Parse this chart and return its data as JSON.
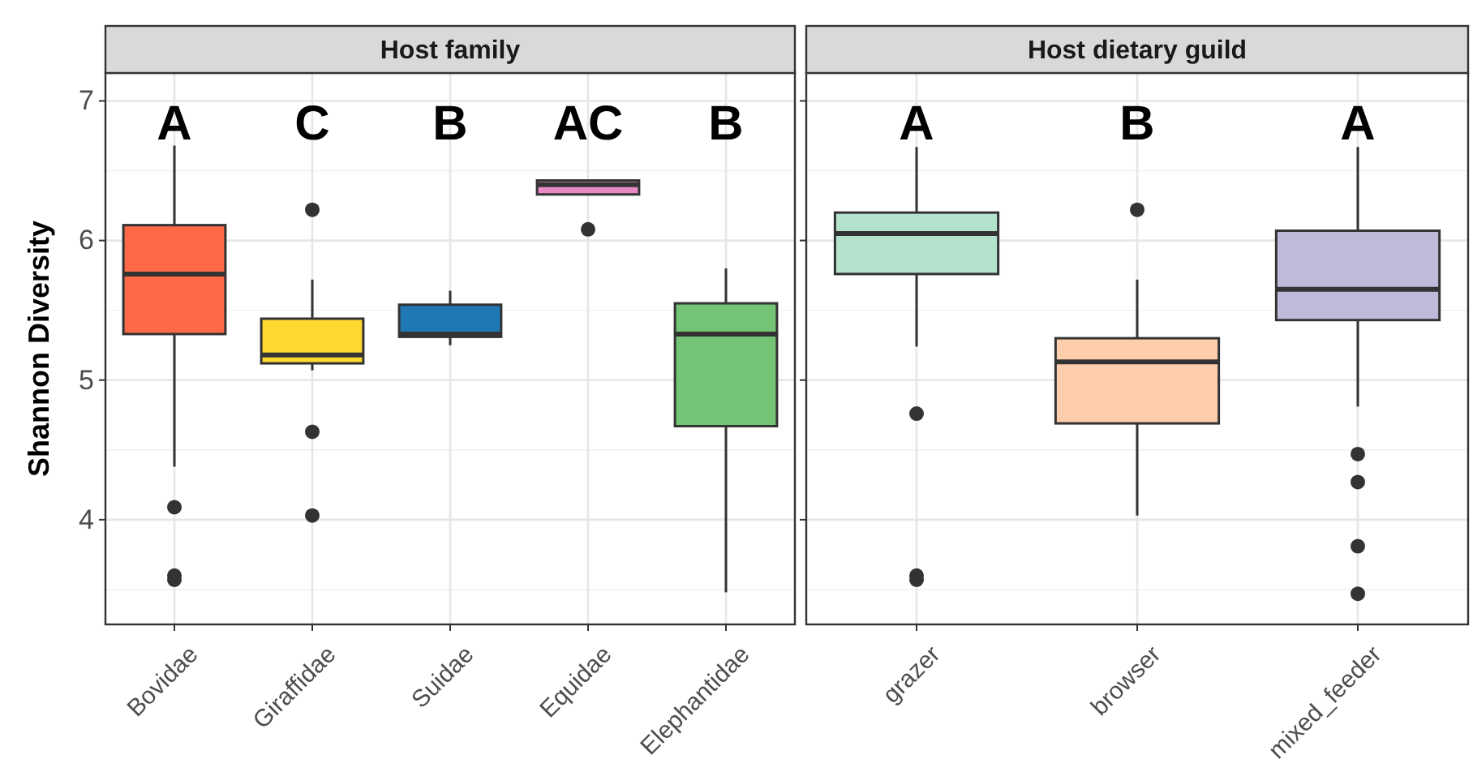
{
  "chart_data": [
    {
      "type": "box",
      "title": "Host family",
      "ylabel": "Shannon Diversity",
      "categories": [
        "Bovidae",
        "Giraffidae",
        "Suidae",
        "Equidae",
        "Elephantidae"
      ],
      "colors": [
        "#fe6a48",
        "#ffd92f",
        "#1f78b4",
        "#e78ac3",
        "#74c476"
      ],
      "boxes": [
        {
          "low": 4.38,
          "q1": 5.33,
          "median": 5.76,
          "q3": 6.11,
          "high": 6.68,
          "outliers": [
            4.09,
            3.6,
            3.57
          ]
        },
        {
          "low": 5.07,
          "q1": 5.12,
          "median": 5.18,
          "q3": 5.44,
          "high": 5.72,
          "outliers": [
            6.22,
            4.63,
            4.03
          ]
        },
        {
          "low": 5.25,
          "q1": 5.31,
          "median": 5.33,
          "q3": 5.54,
          "high": 5.64
        },
        {
          "low": 6.33,
          "q1": 6.33,
          "median": 6.4,
          "q3": 6.43,
          "high": 6.43,
          "outliers": [
            6.08
          ]
        },
        {
          "low": 3.48,
          "q1": 4.67,
          "median": 5.33,
          "q3": 5.55,
          "high": 5.8
        }
      ],
      "ylim": [
        3.25,
        7.2
      ],
      "yticks": [
        4,
        5,
        6,
        7
      ],
      "grid": true,
      "annotations": [
        "A",
        "C",
        "B",
        "AC",
        "B"
      ]
    },
    {
      "type": "box",
      "title": "Host dietary guild",
      "categories": [
        "grazer",
        "browser",
        "mixed_feeder"
      ],
      "colors": [
        "#b3e2cd",
        "#fdcdac",
        "#bebada"
      ],
      "boxes": [
        {
          "low": 5.24,
          "q1": 5.76,
          "median": 6.05,
          "q3": 6.2,
          "high": 6.67,
          "outliers": [
            4.76,
            3.6,
            3.57
          ]
        },
        {
          "low": 4.03,
          "q1": 4.69,
          "median": 5.13,
          "q3": 5.3,
          "high": 5.72,
          "outliers": [
            6.22
          ]
        },
        {
          "low": 4.81,
          "q1": 5.43,
          "median": 5.65,
          "q3": 6.07,
          "high": 6.67,
          "outliers": [
            4.47,
            4.27,
            3.81,
            3.47
          ]
        }
      ],
      "ylim": [
        3.25,
        7.2
      ],
      "yticks": [
        4,
        5,
        6,
        7
      ],
      "grid": true,
      "tick_labels": "x",
      "annotations": [
        "A",
        "B",
        "A"
      ]
    }
  ]
}
